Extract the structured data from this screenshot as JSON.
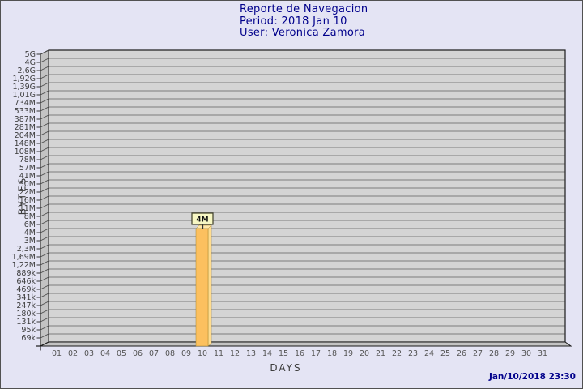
{
  "header": {
    "title": "Reporte de Navegacion",
    "period": "Period: 2018 Jan 10",
    "user": "User: Veronica Zamora",
    "text_color": "#00008B"
  },
  "footer": {
    "generated": "Jan/10/2018 23:30"
  },
  "chart_data": {
    "type": "bar",
    "title": "Reporte de Navegacion",
    "period": "2018 Jan 10",
    "user": "Veronica Zamora",
    "xlabel": "DAYS",
    "ylabel": "BYTES",
    "x_ticks": [
      "01",
      "02",
      "03",
      "04",
      "05",
      "06",
      "07",
      "08",
      "09",
      "10",
      "11",
      "12",
      "13",
      "14",
      "15",
      "16",
      "17",
      "18",
      "19",
      "20",
      "21",
      "22",
      "23",
      "24",
      "25",
      "26",
      "27",
      "28",
      "29",
      "30",
      "31"
    ],
    "y_ticks_top_to_bottom": [
      "5G",
      "4G",
      "2,6G",
      "1,92G",
      "1,39G",
      "1,01G",
      "734M",
      "533M",
      "387M",
      "281M",
      "204M",
      "148M",
      "108M",
      "78M",
      "57M",
      "41M",
      "30M",
      "22M",
      "16M",
      "11M",
      "8M",
      "6M",
      "4M",
      "3M",
      "2,3M",
      "1,69M",
      "1,22M",
      "889k",
      "646k",
      "469k",
      "341k",
      "247k",
      "180k",
      "131k",
      "95k",
      "69k"
    ],
    "bars": [
      {
        "x": "10",
        "value_label": "4M"
      }
    ],
    "legend": "none",
    "grid": "horizontal",
    "colors": {
      "page_bg": "#E4E4F4",
      "plot_bg": "#D4D4D4",
      "grid_line": "#7B7B7B",
      "wall": "#C3C3C3",
      "frame": "#1A1A1A",
      "bar_front": "#FCC05F",
      "bar_side": "#FFDC8E",
      "bar_top": "#FFE8AC",
      "bar_edge": "#A8852F",
      "flag_bg": "#F7F7C3",
      "flag_border": "#3F3F28",
      "title_text": "#00008B"
    }
  }
}
